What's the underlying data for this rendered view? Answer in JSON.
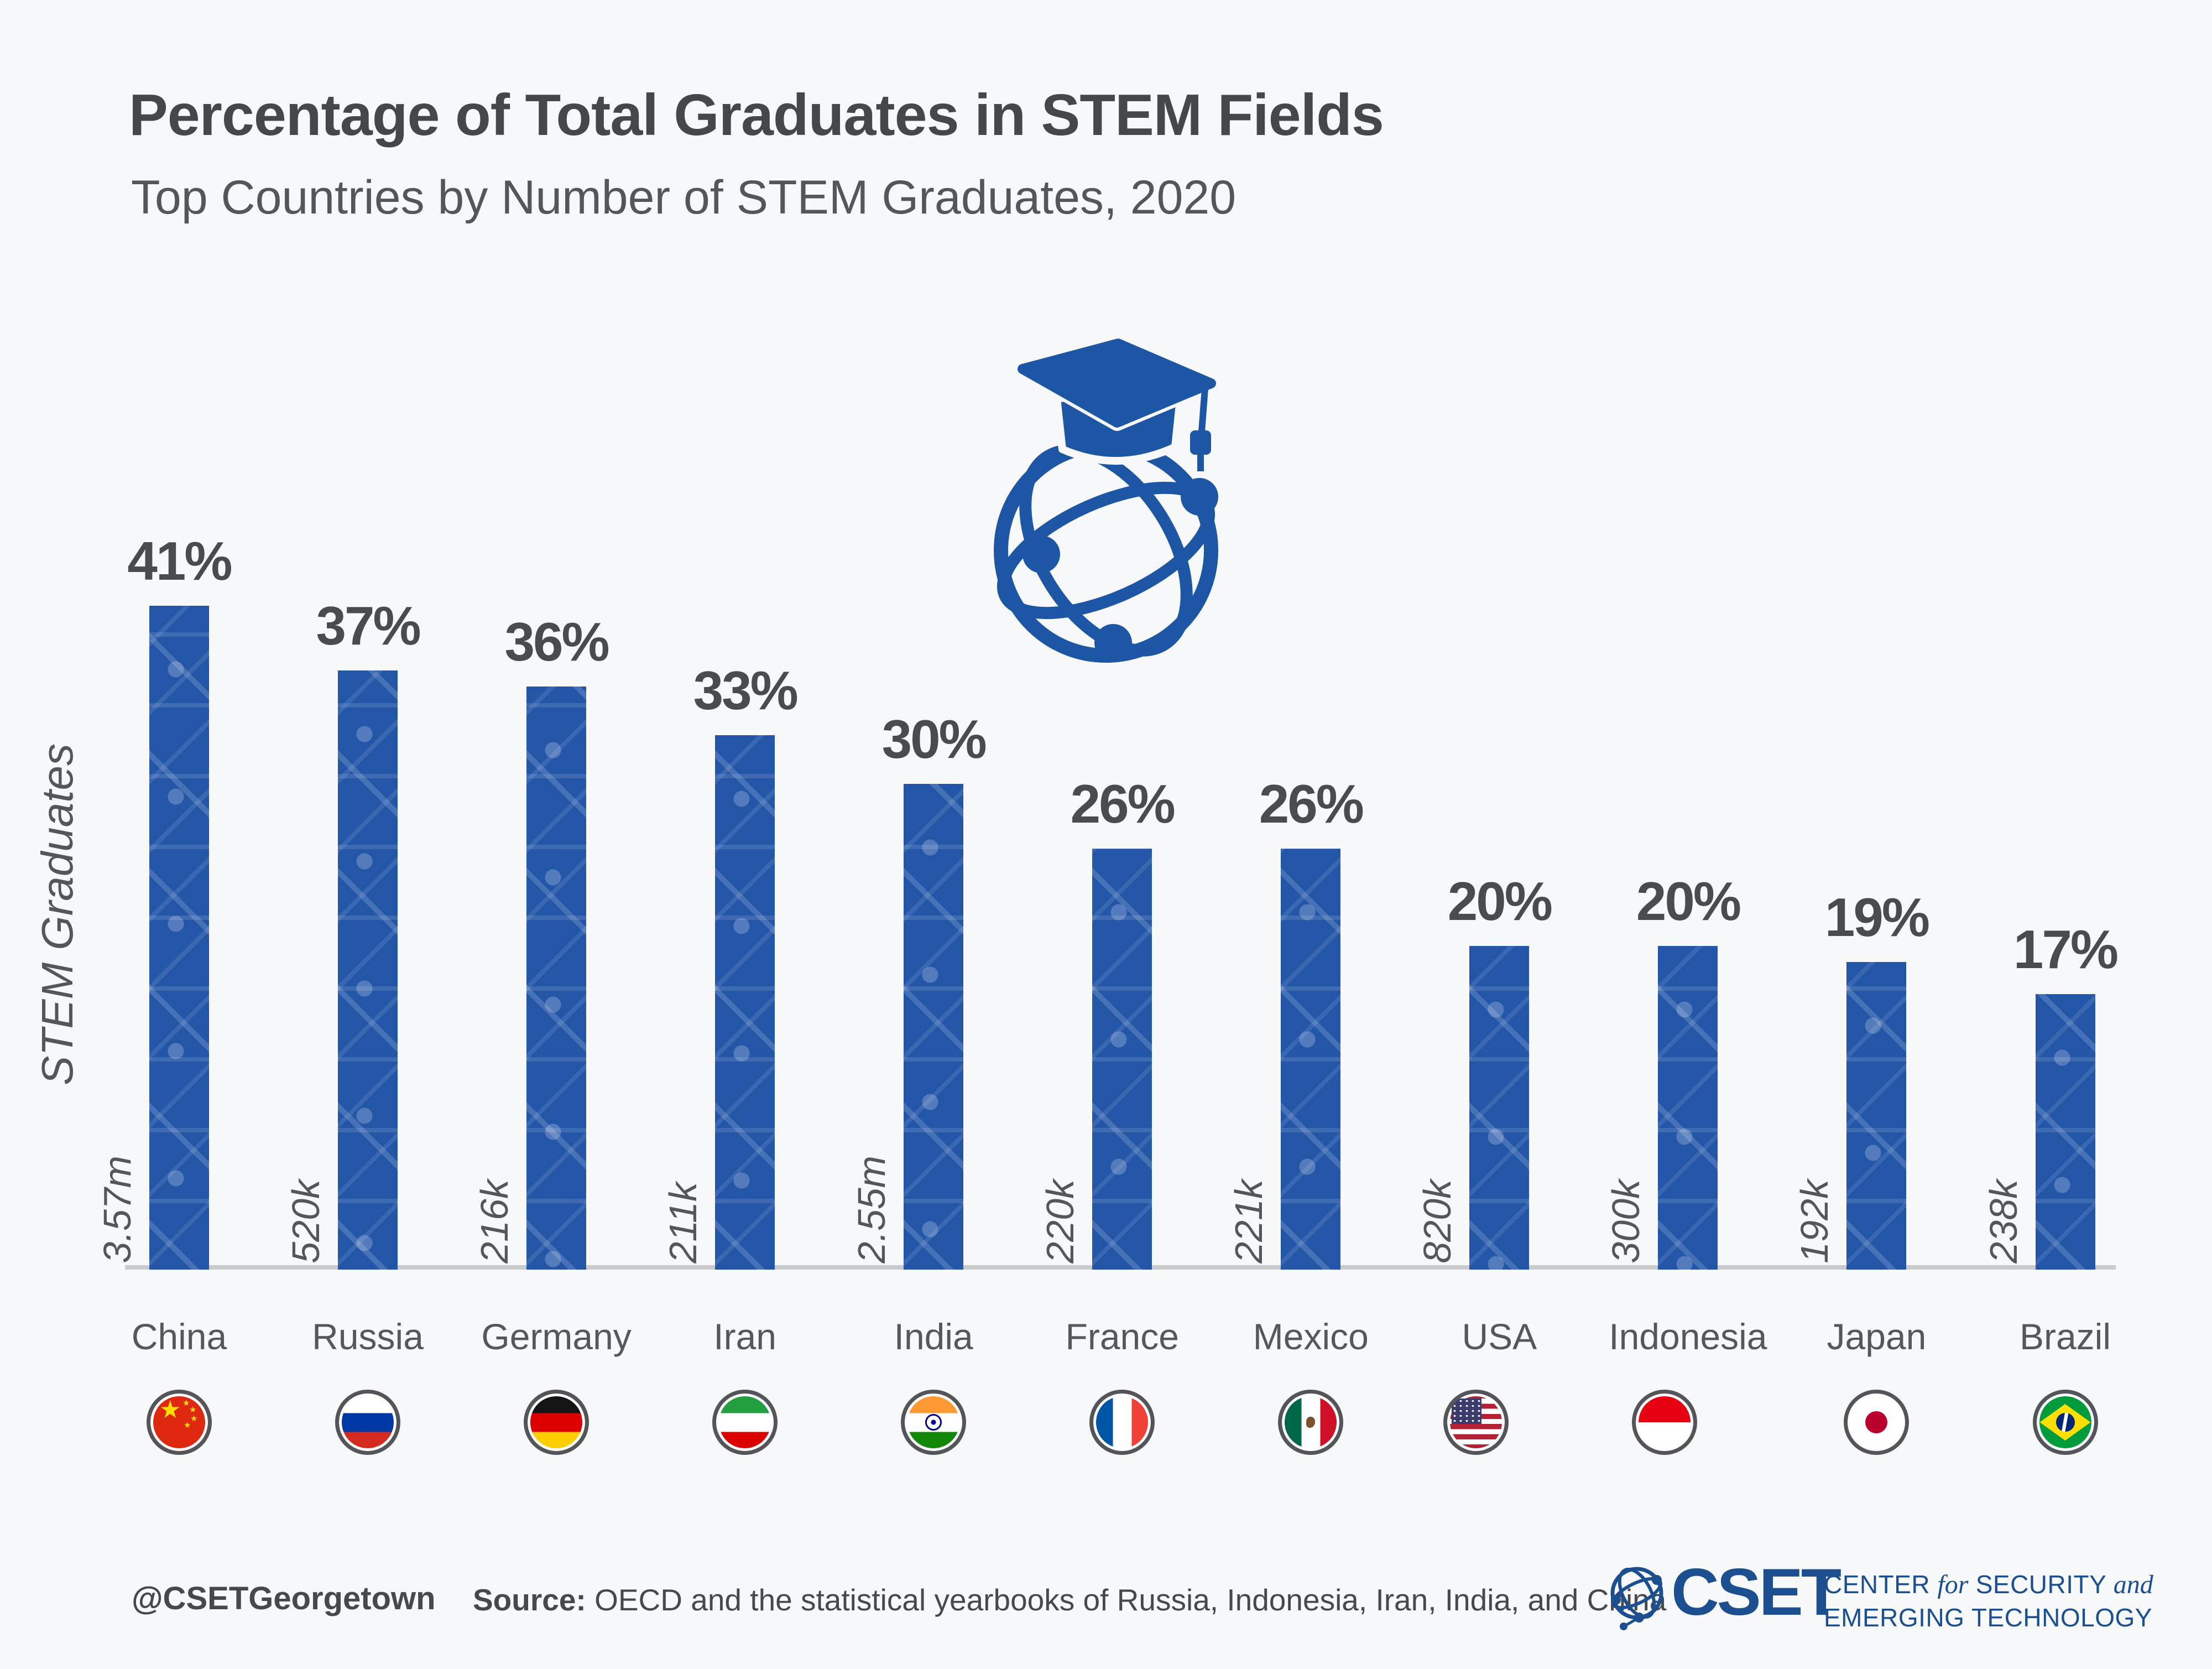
{
  "title": "Percentage of Total Graduates in STEM Fields",
  "subtitle": "Top Countries by Number of STEM Graduates, 2020",
  "y_axis_label": "STEM Graduates",
  "footer": {
    "handle": "@CSETGeorgetown",
    "source_label": "Source:",
    "source_text": "OECD and the statistical yearbooks of Russia, Indonesia, Iran, India, and China"
  },
  "logo": {
    "acronym": "CSET",
    "l1a": "CENTER ",
    "l1b": "for",
    "l1c": " SECURITY ",
    "l1d": "and",
    "line2": "EMERGING TECHNOLOGY"
  },
  "colors": {
    "background": "#F7F8FA",
    "bar_blue": "#2456A8",
    "icon_blue": "#1E56A6",
    "cset_blue": "#1C4F90",
    "text_dark": "#46474B",
    "text_mid": "#54565A",
    "axis_gray": "#C8CACD"
  },
  "chart_data": {
    "type": "bar",
    "title": "Percentage of Total Graduates in STEM Fields",
    "subtitle": "Top Countries by Number of STEM Graduates, 2020",
    "xlabel": "",
    "ylabel": "STEM Graduates",
    "ylim": [
      0,
      45
    ],
    "grid": false,
    "legend": "none",
    "value_suffix": "%",
    "categories": [
      "China",
      "Russia",
      "Germany",
      "Iran",
      "India",
      "France",
      "Mexico",
      "USA",
      "Indonesia",
      "Japan",
      "Brazil"
    ],
    "values": [
      41,
      37,
      36,
      33,
      30,
      26,
      26,
      20,
      20,
      19,
      17
    ],
    "bars": [
      {
        "country": "China",
        "percent": 41,
        "value_label": "41%",
        "stem_graduates": "3.57m",
        "flag": "china"
      },
      {
        "country": "Russia",
        "percent": 37,
        "value_label": "37%",
        "stem_graduates": "520k",
        "flag": "russia"
      },
      {
        "country": "Germany",
        "percent": 36,
        "value_label": "36%",
        "stem_graduates": "216k",
        "flag": "germany"
      },
      {
        "country": "Iran",
        "percent": 33,
        "value_label": "33%",
        "stem_graduates": "211k",
        "flag": "iran"
      },
      {
        "country": "India",
        "percent": 30,
        "value_label": "30%",
        "stem_graduates": "2.55m",
        "flag": "india"
      },
      {
        "country": "France",
        "percent": 26,
        "value_label": "26%",
        "stem_graduates": "220k",
        "flag": "france"
      },
      {
        "country": "Mexico",
        "percent": 26,
        "value_label": "26%",
        "stem_graduates": "221k",
        "flag": "mexico"
      },
      {
        "country": "USA",
        "percent": 20,
        "value_label": "20%",
        "stem_graduates": "820k",
        "flag": "usa"
      },
      {
        "country": "Indonesia",
        "percent": 20,
        "value_label": "20%",
        "stem_graduates": "300k",
        "flag": "indonesia"
      },
      {
        "country": "Japan",
        "percent": 19,
        "value_label": "19%",
        "stem_graduates": "192k",
        "flag": "japan"
      },
      {
        "country": "Brazil",
        "percent": 17,
        "value_label": "17%",
        "stem_graduates": "238k",
        "flag": "brazil"
      }
    ]
  }
}
